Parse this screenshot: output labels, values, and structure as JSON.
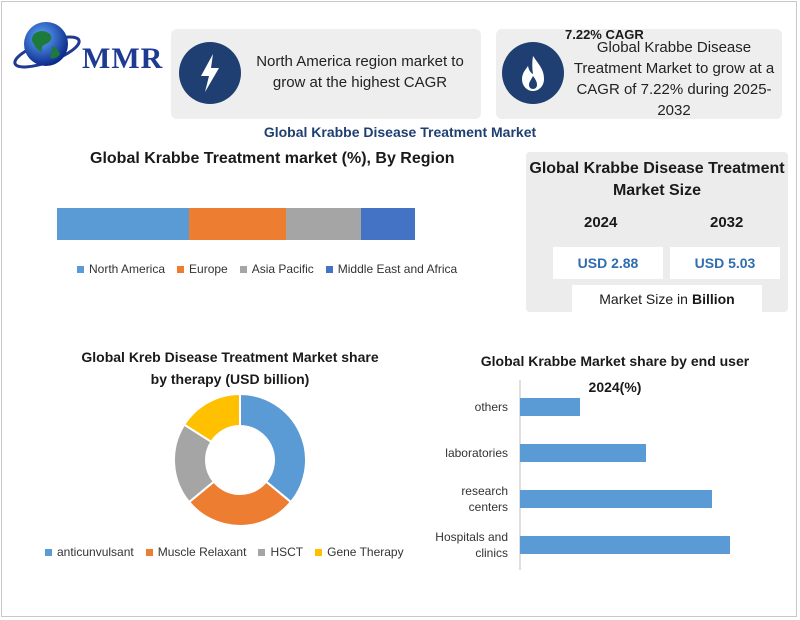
{
  "brand": {
    "logo_text": "MMR"
  },
  "highlights": {
    "card1_text": "North America region market to grow at the highest CAGR",
    "cagr_label": "7.22% CAGR",
    "card2_text": "Global Krabbe Disease Treatment Market to grow at a CAGR of 7.22% during 2025-2032"
  },
  "main_title": "Global Krabbe Disease Treatment Market",
  "market_size": {
    "title": "Global Krabbe Disease Treatment Market Size",
    "year_1": "2024",
    "year_2": "2032",
    "value_1": "USD 2.88",
    "value_2": "USD 5.03",
    "unit_prefix": "Market Size in",
    "unit_bold": "Billion"
  },
  "colors": {
    "north_america": "#5b9bd5",
    "europe": "#ed7d31",
    "asia_pacific": "#a5a5a5",
    "middle_east_africa": "#4472c4",
    "gene_therapy": "#ffc000",
    "bar": "#5b9bd5"
  },
  "chart_data": [
    {
      "type": "bar",
      "orientation": "horizontal-stacked",
      "title": "Global Krabbe Treatment market (%), By Region",
      "categories": [
        "North America",
        "Europe",
        "Asia Pacific",
        "Middle East and Africa"
      ],
      "values": [
        37,
        27,
        21,
        15
      ],
      "legend_position": "bottom"
    },
    {
      "type": "pie",
      "subtype": "donut",
      "title": "Global Kreb Disease Treatment Market share by therapy (USD billion)",
      "categories": [
        "anticunvulsant",
        "Muscle Relaxant",
        "HSCT",
        "Gene Therapy"
      ],
      "values": [
        36,
        28,
        20,
        16
      ],
      "legend_position": "bottom"
    },
    {
      "type": "bar",
      "orientation": "horizontal",
      "title": "Global Krabbe Market share by end user 2024(%)",
      "categories": [
        "others",
        "laboratories",
        "research centers",
        "Hospitals and clinics"
      ],
      "values": [
        10,
        21,
        32,
        35
      ],
      "xlim": [
        0,
        40
      ],
      "grid": false
    }
  ]
}
